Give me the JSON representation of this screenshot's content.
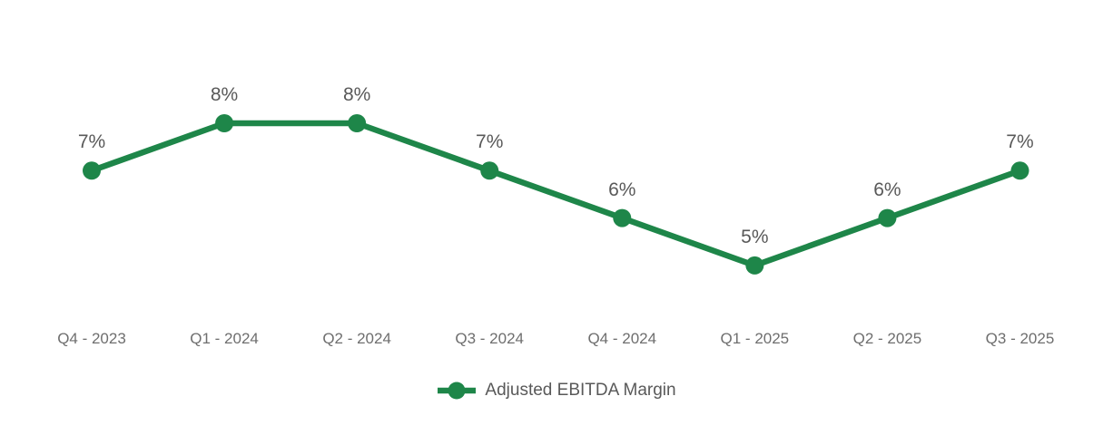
{
  "chart_data": {
    "type": "line",
    "title": "",
    "categories": [
      "Q4 - 2023",
      "Q1 - 2024",
      "Q2 - 2024",
      "Q3 - 2024",
      "Q4 - 2024",
      "Q1 - 2025",
      "Q2 - 2025",
      "Q3 - 2025"
    ],
    "series": [
      {
        "name": "Adjusted EBITDA Margin",
        "values": [
          7,
          8,
          8,
          7,
          6,
          5,
          6,
          7
        ],
        "color": "#1E8649"
      }
    ],
    "data_labels": [
      "7%",
      "8%",
      "8%",
      "7%",
      "6%",
      "5%",
      "6%",
      "7%"
    ],
    "unit": "%",
    "ylim": [
      4.5,
      8.5
    ],
    "grid": false,
    "y_axis_visible": false,
    "x_axis_line_visible": false,
    "legend_position": "bottom",
    "colors": {
      "line": "#1E8649",
      "data_label": "#595959",
      "axis_label": "#6E6E6E",
      "background": "#FFFFFF"
    }
  }
}
